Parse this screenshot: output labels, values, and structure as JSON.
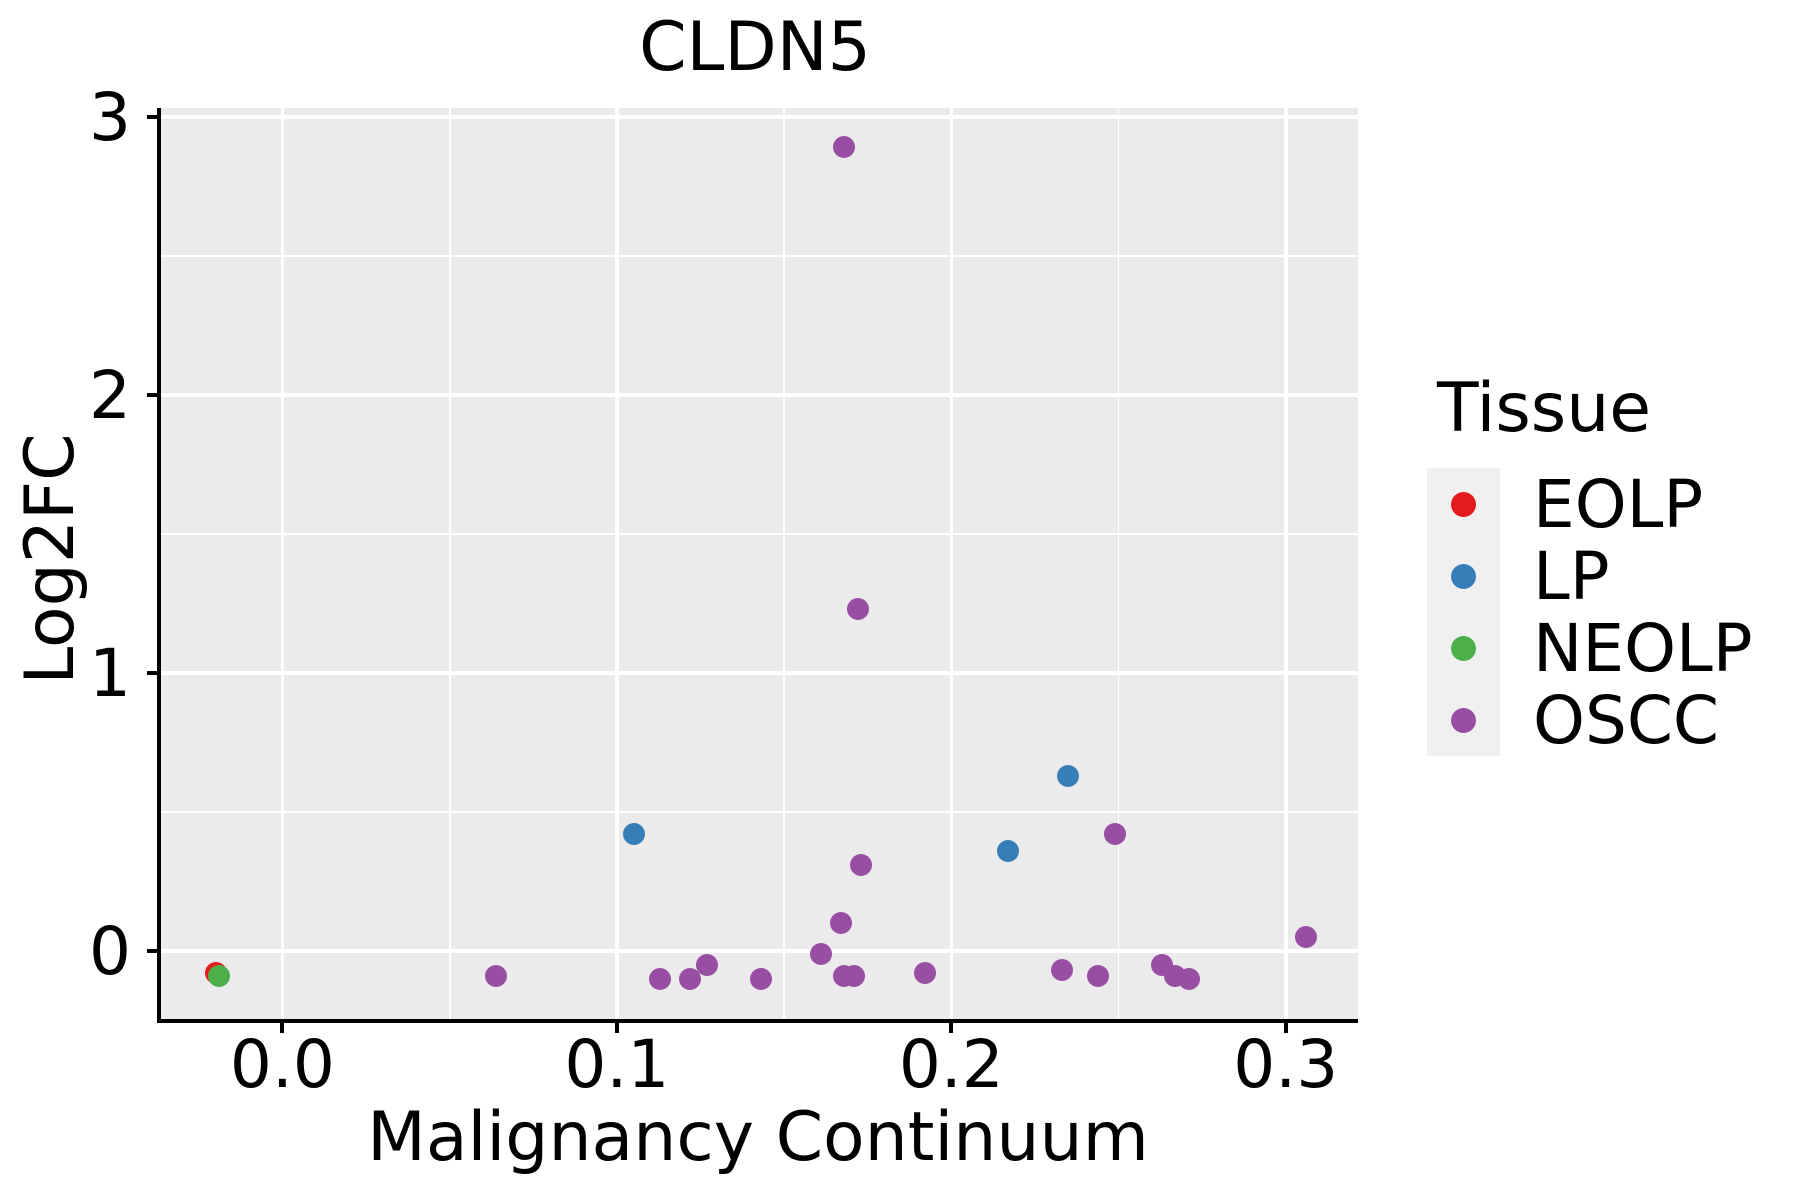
{
  "title": "CLDN5",
  "axes": {
    "x": {
      "label": "Malignancy Continuum",
      "tick_labels": [
        "0.0",
        "0.1",
        "0.2",
        "0.3"
      ],
      "tick_values": [
        0,
        0.1,
        0.2,
        0.3
      ],
      "minor_ticks": [
        0.05,
        0.15,
        0.25
      ],
      "lim": [
        -0.0369,
        0.3216
      ]
    },
    "y": {
      "label": "Log2FC",
      "tick_labels": [
        "0",
        "1",
        "2",
        "3"
      ],
      "tick_values": [
        0,
        1,
        2,
        3
      ],
      "minor_ticks": [
        0.5,
        1.5,
        2.5
      ],
      "lim": [
        -0.252,
        3.032
      ]
    }
  },
  "legend": {
    "title": "Tissue",
    "position": "right",
    "items": [
      {
        "label": "EOLP",
        "color": "#E41A1C"
      },
      {
        "label": "LP",
        "color": "#377EB8"
      },
      {
        "label": "NEOLP",
        "color": "#4DAF4A"
      },
      {
        "label": "OSCC",
        "color": "#984EA3"
      }
    ]
  },
  "colors": {
    "panel_bg": "#EBEBEB",
    "grid": "#FFFFFF",
    "axis": "#000000",
    "text": "#000000",
    "legend_key_bg": "#F0F0F0"
  },
  "chart_data": {
    "type": "scatter",
    "title": "CLDN5",
    "xlabel": "Malignancy Continuum",
    "ylabel": "Log2FC",
    "xlim": [
      -0.0369,
      0.3216
    ],
    "ylim": [
      -0.252,
      3.032
    ],
    "grid": "white major+minor gridlines on gray panel (ggplot style)",
    "legend_position": "right",
    "series": [
      {
        "name": "EOLP",
        "color": "#E41A1C",
        "points": [
          [
            -0.02,
            -0.08
          ]
        ]
      },
      {
        "name": "LP",
        "color": "#377EB8",
        "points": [
          [
            0.105,
            0.42
          ],
          [
            0.217,
            0.36
          ],
          [
            0.235,
            0.63
          ]
        ]
      },
      {
        "name": "NEOLP",
        "color": "#4DAF4A",
        "points": [
          [
            -0.019,
            -0.09
          ]
        ]
      },
      {
        "name": "OSCC",
        "color": "#984EA3",
        "points": [
          [
            0.064,
            -0.09
          ],
          [
            0.113,
            -0.1
          ],
          [
            0.122,
            -0.1
          ],
          [
            0.127,
            -0.05
          ],
          [
            0.143,
            -0.1
          ],
          [
            0.161,
            -0.01
          ],
          [
            0.167,
            0.1
          ],
          [
            0.168,
            -0.09
          ],
          [
            0.171,
            -0.09
          ],
          [
            0.168,
            2.89
          ],
          [
            0.172,
            1.23
          ],
          [
            0.173,
            0.31
          ],
          [
            0.192,
            -0.08
          ],
          [
            0.233,
            -0.07
          ],
          [
            0.244,
            -0.09
          ],
          [
            0.249,
            0.42
          ],
          [
            0.263,
            -0.05
          ],
          [
            0.267,
            -0.09
          ],
          [
            0.271,
            -0.1
          ],
          [
            0.306,
            0.05
          ]
        ]
      }
    ]
  }
}
